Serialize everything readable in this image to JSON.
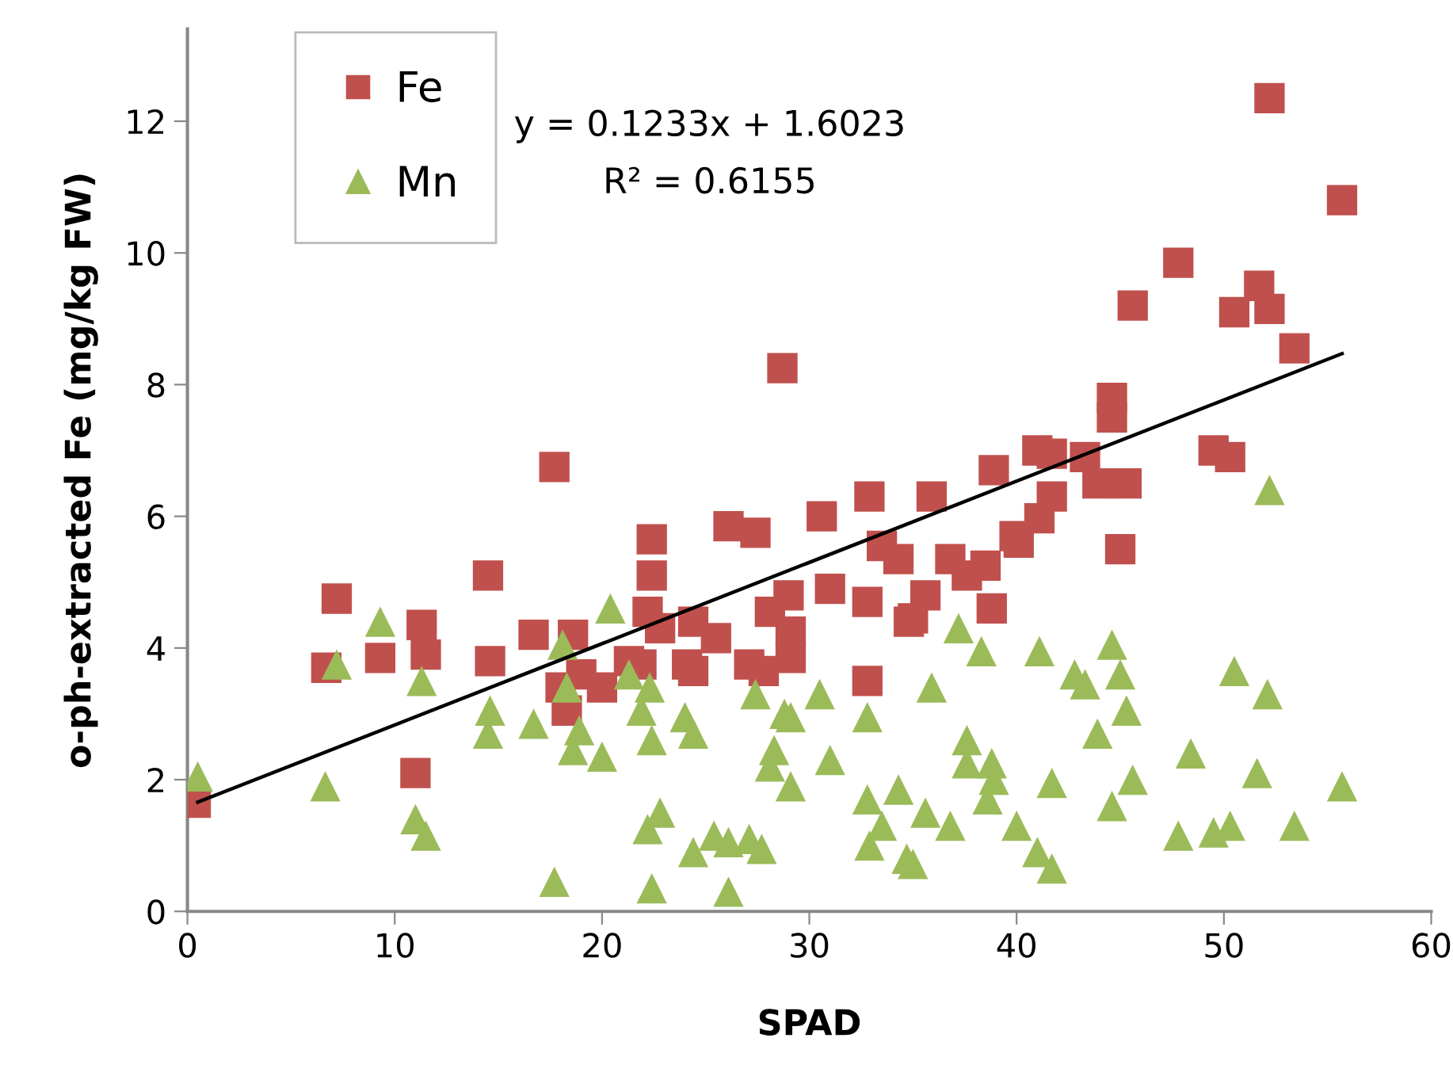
{
  "chart_data": {
    "type": "scatter",
    "xlabel": "SPAD",
    "ylabel": "o-ph-extracted Fe (mg/kg FW)",
    "xlim": [
      0,
      60
    ],
    "xticks": [
      0,
      10,
      20,
      30,
      40,
      50,
      60
    ],
    "ylim": [
      0,
      13.4
    ],
    "yticks": [
      0,
      2,
      4,
      6,
      8,
      10,
      12
    ],
    "grid": false,
    "legend": "top left",
    "annotations": [
      "y = 0.1233x + 1.6023",
      "R² = 0.6155"
    ],
    "series": [
      {
        "name": "Fe",
        "color": "#c0504d",
        "marker": "square",
        "x": [
          0.4,
          6.7,
          7.2,
          9.3,
          11.0,
          11.3,
          11.5,
          14.5,
          14.6,
          16.7,
          17.7,
          18.0,
          18.3,
          18.6,
          19.0,
          20.0,
          21.3,
          21.9,
          22.2,
          22.4,
          22.4,
          22.8,
          24.1,
          24.4,
          24.4,
          25.5,
          26.1,
          27.1,
          27.4,
          27.8,
          28.1,
          28.7,
          29.0,
          29.1,
          29.1,
          30.6,
          31.0,
          32.8,
          32.8,
          32.9,
          33.5,
          34.3,
          34.8,
          35.0,
          35.6,
          35.9,
          36.8,
          37.6,
          38.5,
          38.8,
          38.9,
          39.9,
          40.1,
          41.0,
          41.1,
          41.7,
          41.7,
          43.3,
          43.9,
          44.6,
          44.6,
          45.0,
          45.3,
          45.6,
          47.8,
          49.5,
          50.3,
          50.5,
          51.7,
          52.2,
          52.2,
          53.4,
          55.7
        ],
        "values": [
          1.65,
          3.7,
          4.75,
          3.85,
          2.1,
          4.35,
          3.9,
          5.1,
          3.8,
          4.2,
          6.75,
          3.4,
          3.05,
          4.2,
          3.6,
          3.4,
          3.8,
          3.75,
          4.55,
          5.65,
          5.1,
          4.3,
          3.75,
          4.4,
          3.65,
          4.15,
          5.85,
          3.75,
          5.75,
          3.65,
          4.55,
          8.25,
          4.8,
          4.25,
          3.85,
          6.0,
          4.9,
          4.7,
          3.5,
          6.3,
          5.55,
          5.35,
          4.4,
          4.45,
          4.8,
          6.3,
          5.35,
          5.1,
          5.25,
          4.6,
          6.7,
          5.7,
          5.6,
          7.0,
          5.97,
          6.95,
          6.3,
          6.9,
          6.5,
          7.8,
          7.5,
          5.5,
          6.5,
          9.2,
          9.85,
          7.0,
          6.9,
          9.1,
          9.5,
          12.35,
          9.15,
          8.55,
          10.8
        ]
      },
      {
        "name": "Mn",
        "color": "#9bbb59",
        "marker": "triangle",
        "x": [
          0.5,
          6.65,
          7.2,
          9.3,
          11.0,
          11.3,
          11.5,
          14.5,
          14.6,
          16.7,
          17.7,
          18.1,
          18.3,
          18.6,
          18.9,
          20.0,
          20.4,
          21.3,
          21.9,
          22.2,
          22.3,
          22.4,
          22.4,
          22.8,
          24.0,
          24.4,
          24.4,
          25.4,
          26.1,
          26.1,
          27.1,
          27.4,
          27.7,
          28.1,
          28.3,
          28.8,
          29.1,
          29.1,
          30.5,
          31.0,
          32.8,
          32.8,
          32.9,
          33.5,
          34.3,
          34.7,
          35.0,
          35.6,
          35.9,
          36.8,
          37.2,
          37.6,
          37.6,
          38.3,
          38.6,
          38.8,
          38.9,
          40.0,
          41.0,
          41.1,
          41.7,
          41.7,
          42.8,
          43.3,
          43.9,
          44.6,
          44.6,
          45.0,
          45.3,
          45.6,
          47.8,
          48.4,
          49.5,
          50.3,
          50.5,
          51.6,
          52.1,
          52.2,
          53.4,
          55.7
        ],
        "values": [
          2.05,
          1.9,
          3.75,
          4.4,
          1.4,
          3.5,
          1.15,
          2.7,
          3.05,
          2.85,
          0.45,
          4.05,
          3.4,
          2.45,
          2.75,
          2.35,
          4.6,
          3.6,
          3.05,
          1.25,
          3.4,
          2.6,
          0.35,
          1.5,
          2.95,
          2.7,
          0.9,
          1.15,
          1.05,
          0.3,
          1.1,
          3.3,
          0.95,
          2.2,
          2.45,
          3.0,
          2.95,
          1.9,
          3.3,
          2.3,
          2.95,
          1.7,
          1.0,
          1.3,
          1.85,
          0.8,
          0.72,
          1.5,
          3.4,
          1.3,
          4.3,
          2.6,
          2.25,
          3.95,
          1.7,
          2.25,
          2.0,
          1.3,
          0.9,
          3.95,
          1.95,
          0.65,
          3.6,
          3.45,
          2.7,
          4.05,
          1.6,
          3.6,
          3.05,
          2.0,
          1.15,
          2.4,
          1.2,
          1.3,
          3.65,
          2.1,
          3.3,
          6.4,
          1.3,
          1.9
        ]
      },
      {
        "type": "line",
        "color": "#000000",
        "marker": "none",
        "line_style": "solid",
        "x": [
          0.5,
          55.7
        ],
        "values": [
          1.66,
          8.47
        ]
      }
    ]
  }
}
